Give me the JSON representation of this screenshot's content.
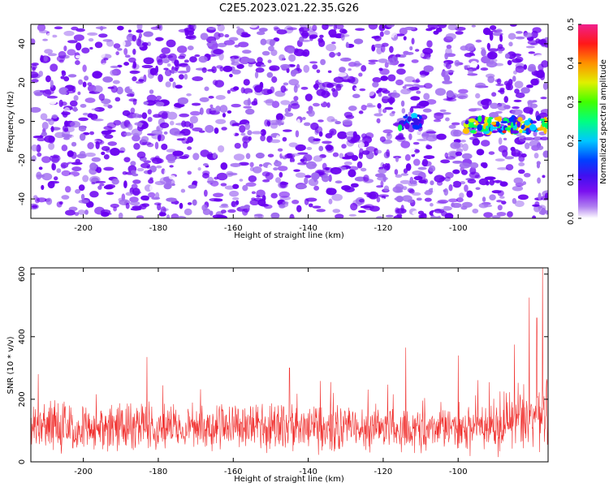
{
  "title": "C2E5.2023.021.22.35.G26",
  "colors": {
    "snr_line": "#f0302e",
    "spectrogram_base": "#7a1cf0",
    "colormap": [
      "#ffffff",
      "#a06cf0",
      "#6a00f0",
      "#3a10e8",
      "#0030ff",
      "#00d0ff",
      "#00ff60",
      "#d0ff00",
      "#ffc000",
      "#ff2020",
      "#f0208c"
    ]
  },
  "chart_data": [
    {
      "type": "heatmap",
      "title": "",
      "xlabel": "Height of straight line (km)",
      "ylabel": "Frequency (Hz)",
      "xlim": [
        -214,
        -76
      ],
      "ylim": [
        -50,
        50
      ],
      "x_ticks": [
        -200,
        -180,
        -160,
        -140,
        -120,
        -100
      ],
      "x_tick_labels": [
        "-200",
        "-180",
        "-160",
        "-140",
        "-120",
        "-100"
      ],
      "y_ticks": [
        -40,
        -20,
        0,
        20,
        40
      ],
      "y_tick_labels": [
        "-40",
        "-20",
        "0",
        "20",
        "40"
      ],
      "colorbar": {
        "label": "Normalized spectral amplitude",
        "range": [
          0.0,
          0.5
        ],
        "ticks": [
          0.0,
          0.1,
          0.2,
          0.3,
          0.4,
          0.5
        ],
        "tick_labels": [
          "0.0",
          "0.1",
          "0.2",
          "0.3",
          "0.4",
          "0.5"
        ]
      },
      "features": [
        {
          "x_range": [
            -116,
            -110
          ],
          "y_center": 0,
          "peak_value": 0.3
        },
        {
          "x_range": [
            -98,
            -76
          ],
          "y_center": -2,
          "peak_value": 0.45
        }
      ],
      "background_value_range": [
        0.0,
        0.12
      ]
    },
    {
      "type": "line",
      "title": "",
      "xlabel": "Height of straight line (km)",
      "ylabel": "SNR (10 * v/v)",
      "xlim": [
        -214,
        -76
      ],
      "ylim": [
        0,
        620
      ],
      "x_ticks": [
        -200,
        -180,
        -160,
        -140,
        -120,
        -100
      ],
      "x_tick_labels": [
        "-200",
        "-180",
        "-160",
        "-140",
        "-120",
        "-100"
      ],
      "y_ticks": [
        0,
        200,
        400,
        600
      ],
      "y_tick_labels": [
        "0",
        "200",
        "400",
        "600"
      ],
      "series_summary": {
        "baseline_mean": 110,
        "baseline_spread": 60,
        "spikes": [
          {
            "x": -212,
            "y": 280
          },
          {
            "x": -183,
            "y": 335
          },
          {
            "x": -145,
            "y": 300
          },
          {
            "x": -114,
            "y": 365
          },
          {
            "x": -100,
            "y": 340
          },
          {
            "x": -85,
            "y": 375
          },
          {
            "x": -81,
            "y": 525
          },
          {
            "x": -79,
            "y": 460
          },
          {
            "x": -77.5,
            "y": 620
          }
        ]
      }
    }
  ]
}
